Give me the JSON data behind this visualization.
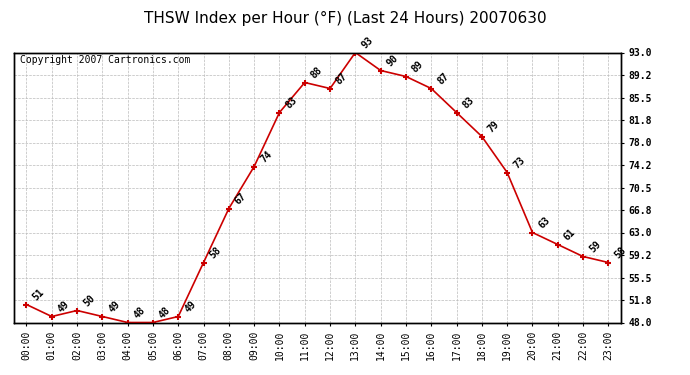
{
  "title": "THSW Index per Hour (°F) (Last 24 Hours) 20070630",
  "copyright": "Copyright 2007 Cartronics.com",
  "hours": [
    0,
    1,
    2,
    3,
    4,
    5,
    6,
    7,
    8,
    9,
    10,
    11,
    12,
    13,
    14,
    15,
    16,
    17,
    18,
    19,
    20,
    21,
    22,
    23
  ],
  "values": [
    51,
    49,
    50,
    49,
    48,
    48,
    49,
    58,
    67,
    74,
    83,
    88,
    87,
    93,
    90,
    89,
    87,
    83,
    79,
    73,
    63,
    61,
    59,
    58
  ],
  "xlabels": [
    "00:00",
    "01:00",
    "02:00",
    "03:00",
    "04:00",
    "05:00",
    "06:00",
    "07:00",
    "08:00",
    "09:00",
    "10:00",
    "11:00",
    "12:00",
    "13:00",
    "14:00",
    "15:00",
    "16:00",
    "17:00",
    "18:00",
    "19:00",
    "20:00",
    "21:00",
    "22:00",
    "23:00"
  ],
  "ylim": [
    48.0,
    93.0
  ],
  "yticks": [
    48.0,
    51.8,
    55.5,
    59.2,
    63.0,
    66.8,
    70.5,
    74.2,
    78.0,
    81.8,
    85.5,
    89.2,
    93.0
  ],
  "ytick_labels": [
    "48.0",
    "51.8",
    "55.5",
    "59.2",
    "63.0",
    "66.8",
    "70.5",
    "74.2",
    "78.0",
    "81.8",
    "85.5",
    "89.2",
    "93.0"
  ],
  "line_color": "#cc0000",
  "marker_color": "#cc0000",
  "bg_color": "#ffffff",
  "grid_color": "#bbbbbb",
  "title_fontsize": 11,
  "label_fontsize": 7,
  "annotation_fontsize": 7,
  "copyright_fontsize": 7
}
